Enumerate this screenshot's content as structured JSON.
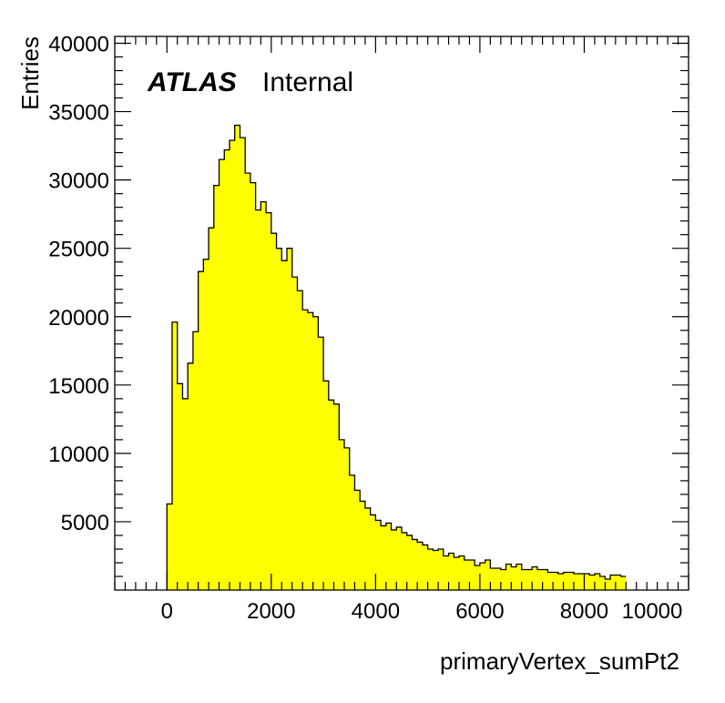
{
  "chart_data": {
    "type": "histogram",
    "title": "",
    "label_bold": "ATLAS",
    "label_text": "Internal",
    "xlabel": "primaryVertex_sumPt2",
    "ylabel": "Entries",
    "xlim": [
      -1000,
      10000
    ],
    "ylim": [
      0,
      40500
    ],
    "x_ticks": [
      "0",
      "2000",
      "4000",
      "6000",
      "8000",
      "10000"
    ],
    "y_ticks": [
      "5000",
      "10000",
      "15000",
      "20000",
      "25000",
      "30000",
      "35000",
      "40000"
    ],
    "fill_color": "#ffff00",
    "line_color": "#000000",
    "bin_width": 100,
    "bin_start": 0,
    "values": [
      6300,
      19600,
      15100,
      14000,
      16600,
      18900,
      23300,
      24200,
      26500,
      29600,
      31500,
      32200,
      32900,
      34000,
      33100,
      30500,
      29800,
      27800,
      28400,
      27600,
      26100,
      25000,
      24100,
      25000,
      22900,
      21900,
      20500,
      20300,
      20000,
      18500,
      15300,
      13900,
      13600,
      11000,
      10400,
      8400,
      7300,
      6500,
      6000,
      5500,
      5100,
      4700,
      4900,
      4400,
      4600,
      4200,
      4000,
      3700,
      3500,
      3300,
      3000,
      2900,
      3000,
      2500,
      2700,
      2400,
      2500,
      2200,
      2200,
      1800,
      2000,
      2200,
      1600,
      1600,
      1500,
      1900,
      1700,
      1900,
      1500,
      1500,
      1700,
      1500,
      1500,
      1300,
      1300,
      1200,
      1300,
      1300,
      1200,
      1200,
      1200,
      1100,
      1200,
      1000,
      800,
      1100,
      1100,
      1000
    ]
  }
}
